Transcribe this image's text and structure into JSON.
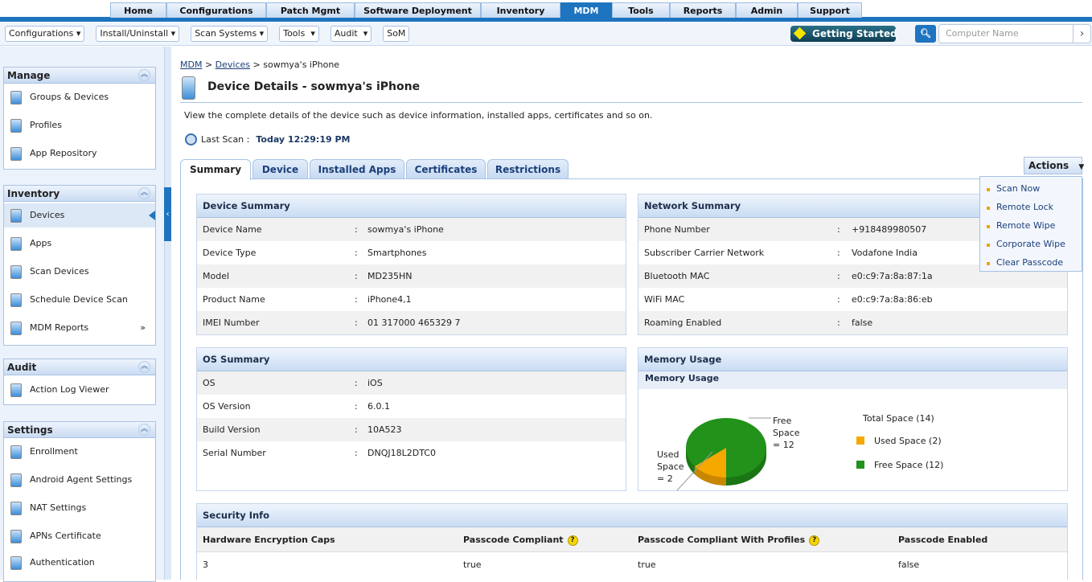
{
  "top_tabs": [
    "Home",
    "Configurations",
    "Patch Mgmt",
    "Software Deployment",
    "Inventory",
    "MDM",
    "Tools",
    "Reports",
    "Admin",
    "Support"
  ],
  "active_top_tab": "MDM",
  "toolbar": {
    "menus": [
      "Configurations",
      "Install/Uninstall",
      "Scan Systems",
      "Tools",
      "Audit",
      "SoM"
    ],
    "getting_started": "Getting Started",
    "search_placeholder": "Computer Name"
  },
  "sidebar": {
    "manage": {
      "title": "Manage",
      "items": [
        "Groups & Devices",
        "Profiles",
        "App Repository"
      ]
    },
    "inventory": {
      "title": "Inventory",
      "items": [
        "Devices",
        "Apps",
        "Scan Devices",
        "Schedule Device Scan",
        "MDM Reports"
      ],
      "selected": "Devices"
    },
    "audit": {
      "title": "Audit",
      "items": [
        "Action Log Viewer"
      ]
    },
    "settings": {
      "title": "Settings",
      "items": [
        "Enrollment",
        "Android Agent Settings",
        "NAT Settings",
        "APNs Certificate",
        "Authentication"
      ]
    }
  },
  "breadcrumb": {
    "mdm": "MDM",
    "devices": "Devices",
    "current": "sowmya's iPhone",
    "sep": ">"
  },
  "page": {
    "title": "Device Details - sowmya's iPhone",
    "description": "View the complete details of the device such as device information, installed apps, certificates and so on.",
    "last_scan_label": "Last Scan :",
    "last_scan_value": "Today 12:29:19 PM"
  },
  "tabs": [
    "Summary",
    "Device",
    "Installed Apps",
    "Certificates",
    "Restrictions"
  ],
  "active_tab": "Summary",
  "actions": {
    "label": "Actions",
    "items": [
      "Scan Now",
      "Remote Lock",
      "Remote Wipe",
      "Corporate Wipe",
      "Clear Passcode"
    ]
  },
  "device_summary": {
    "title": "Device Summary",
    "rows": [
      [
        "Device Name",
        "sowmya's iPhone"
      ],
      [
        "Device Type",
        "Smartphones"
      ],
      [
        "Model",
        "MD235HN"
      ],
      [
        "Product Name",
        "iPhone4,1"
      ],
      [
        "IMEI Number",
        "01 317000 465329 7"
      ]
    ]
  },
  "network_summary": {
    "title": "Network Summary",
    "rows": [
      [
        "Phone Number",
        "+918489980507"
      ],
      [
        "Subscriber Carrier Network",
        "Vodafone India"
      ],
      [
        "Bluetooth MAC",
        "e0:c9:7a:8a:87:1a"
      ],
      [
        "WiFi MAC",
        "e0:c9:7a:8a:86:eb"
      ],
      [
        "Roaming Enabled",
        "false"
      ]
    ]
  },
  "os_summary": {
    "title": "OS Summary",
    "rows": [
      [
        "OS",
        "iOS"
      ],
      [
        "OS Version",
        "6.0.1"
      ],
      [
        "Build Version",
        "10A523"
      ],
      [
        "Serial Number",
        "DNQJ18L2DTC0"
      ]
    ]
  },
  "memory": {
    "title": "Memory Usage",
    "subtitle": "Memory Usage",
    "total_label": "Total Space (14)",
    "chart_data": {
      "type": "pie",
      "slices": [
        {
          "name": "Used Space",
          "value": 2,
          "color": "#f5a800",
          "legend": "Used Space (2)",
          "label": [
            "Used",
            "Space",
            "= 2"
          ]
        },
        {
          "name": "Free Space",
          "value": 12,
          "color": "#22921a",
          "legend": "Free Space (12)",
          "label": [
            "Free",
            "Space",
            "= 12"
          ]
        }
      ]
    }
  },
  "security": {
    "title": "Security Info",
    "headers": [
      "Hardware Encryption Caps",
      "Passcode Compliant",
      "Passcode Compliant With Profiles",
      "Passcode Enabled"
    ],
    "help": "?",
    "row": [
      "3",
      "true",
      "true",
      "false"
    ]
  }
}
